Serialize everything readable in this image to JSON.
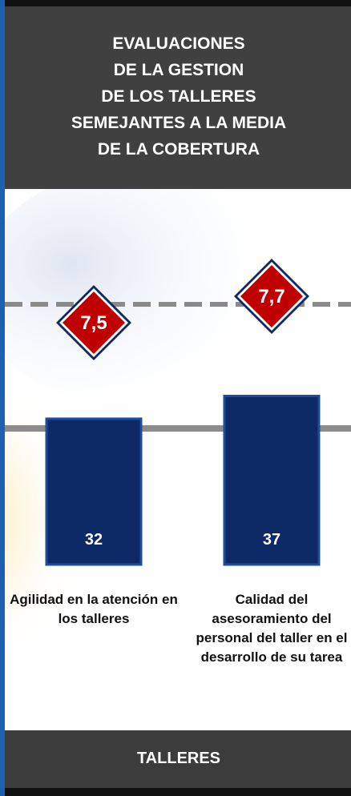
{
  "chart_data": {
    "type": "bar",
    "title": [
      "EVALUACIONES",
      "DE LA GESTION",
      "DE LOS TALLERES",
      "SEMEJANTES A LA MEDIA",
      "DE LA COBERTURA"
    ],
    "categories": [
      "Agilidad en la atención en los talleres",
      "Calidad del asesoramiento del personal del taller en el desarrollo de su tarea"
    ],
    "values": [
      32,
      37
    ],
    "color": "#0e2a66",
    "markers": {
      "values": [
        7.5,
        7.7
      ],
      "value_labels": [
        "7,5",
        "7,7"
      ],
      "color": "#c00000"
    },
    "footer": "TALLERES"
  }
}
